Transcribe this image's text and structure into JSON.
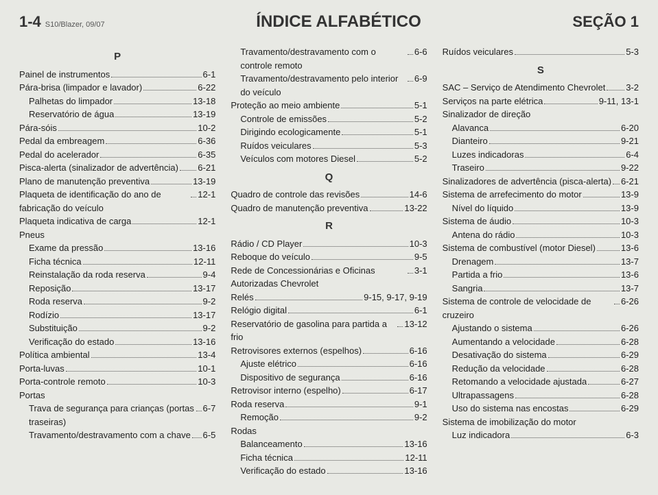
{
  "header": {
    "pageNum": "1-4",
    "docRef": "S10/Blazer, 09/07",
    "title": "ÍNDICE ALFABÉTICO",
    "section": "SEÇÃO 1"
  },
  "columns": [
    [
      {
        "type": "letter",
        "text": "P"
      },
      {
        "type": "entry",
        "label": "Painel de instrumentos",
        "page": "6-1"
      },
      {
        "type": "entry",
        "label": "Pára-brisa (limpador e lavador)",
        "page": "6-22"
      },
      {
        "type": "entry",
        "label": "Palhetas do limpador",
        "page": "13-18",
        "indent": 1
      },
      {
        "type": "entry",
        "label": "Reservatório de água",
        "page": "13-19",
        "indent": 1
      },
      {
        "type": "entry",
        "label": "Pára-sóis",
        "page": "10-2"
      },
      {
        "type": "entry",
        "label": "Pedal da embreagem",
        "page": "6-36"
      },
      {
        "type": "entry",
        "label": "Pedal do acelerador",
        "page": "6-35"
      },
      {
        "type": "entry",
        "label": "Pisca-alerta (sinalizador de advertência)",
        "page": "6-21"
      },
      {
        "type": "entry",
        "label": "Plano de manutenção preventiva",
        "page": "13-19"
      },
      {
        "type": "entry",
        "label": "Plaqueta de identificação do ano de fabricação do veículo",
        "page": "12-1"
      },
      {
        "type": "entry",
        "label": "Plaqueta indicativa de carga",
        "page": "12-1"
      },
      {
        "type": "entry",
        "label": "Pneus",
        "noref": true
      },
      {
        "type": "entry",
        "label": "Exame da pressão",
        "page": "13-16",
        "indent": 1
      },
      {
        "type": "entry",
        "label": "Ficha técnica",
        "page": "12-11",
        "indent": 1
      },
      {
        "type": "entry",
        "label": "Reinstalação da roda reserva",
        "page": "9-4",
        "indent": 1
      },
      {
        "type": "entry",
        "label": "Reposição",
        "page": "13-17",
        "indent": 1
      },
      {
        "type": "entry",
        "label": "Roda reserva",
        "page": "9-2",
        "indent": 1
      },
      {
        "type": "entry",
        "label": "Rodízio",
        "page": "13-17",
        "indent": 1
      },
      {
        "type": "entry",
        "label": "Substituição",
        "page": "9-2",
        "indent": 1
      },
      {
        "type": "entry",
        "label": "Verificação do estado",
        "page": "13-16",
        "indent": 1
      },
      {
        "type": "entry",
        "label": "Política ambiental",
        "page": "13-4"
      },
      {
        "type": "entry",
        "label": "Porta-luvas",
        "page": "10-1"
      },
      {
        "type": "entry",
        "label": "Porta-controle remoto",
        "page": "10-3"
      },
      {
        "type": "entry",
        "label": "Portas",
        "noref": true
      },
      {
        "type": "entry",
        "label": "Trava de segurança para crianças (portas traseiras)",
        "page": "6-7",
        "indent": 1
      },
      {
        "type": "entry",
        "label": "Travamento/destravamento com a chave",
        "page": "6-5",
        "indent": 1
      }
    ],
    [
      {
        "type": "entry",
        "label": "Travamento/destravamento com o controle remoto",
        "page": "6-6",
        "indent": 1
      },
      {
        "type": "entry",
        "label": "Travamento/destravamento pelo interior do veículo",
        "page": "6-9",
        "indent": 1
      },
      {
        "type": "entry",
        "label": "Proteção ao meio ambiente",
        "page": "5-1"
      },
      {
        "type": "entry",
        "label": "Controle de emissões",
        "page": "5-2",
        "indent": 1
      },
      {
        "type": "entry",
        "label": "Dirigindo ecologicamente",
        "page": "5-1",
        "indent": 1
      },
      {
        "type": "entry",
        "label": "Ruídos veiculares",
        "page": "5-3",
        "indent": 1
      },
      {
        "type": "entry",
        "label": "Veículos com motores Diesel",
        "page": "5-2",
        "indent": 1
      },
      {
        "type": "letter",
        "text": "Q"
      },
      {
        "type": "entry",
        "label": "Quadro de controle das revisões",
        "page": "14-6"
      },
      {
        "type": "entry",
        "label": "Quadro de manutenção preventiva",
        "page": "13-22"
      },
      {
        "type": "letter",
        "text": "R"
      },
      {
        "type": "entry",
        "label": "Rádio / CD Player",
        "page": "10-3"
      },
      {
        "type": "entry",
        "label": "Reboque do veículo",
        "page": "9-5"
      },
      {
        "type": "entry",
        "label": "Rede de Concessionárias e Oficinas Autorizadas Chevrolet",
        "page": "3-1"
      },
      {
        "type": "entry",
        "label": "Relés",
        "page": "9-15, 9-17, 9-19"
      },
      {
        "type": "entry",
        "label": "Relógio digital",
        "page": "6-1"
      },
      {
        "type": "entry",
        "label": "Reservatório de gasolina para partida a frio",
        "page": "13-12"
      },
      {
        "type": "entry",
        "label": "Retrovisores externos (espelhos)",
        "page": "6-16"
      },
      {
        "type": "entry",
        "label": "Ajuste elétrico",
        "page": "6-16",
        "indent": 1
      },
      {
        "type": "entry",
        "label": "Dispositivo de segurança",
        "page": "6-16",
        "indent": 1
      },
      {
        "type": "entry",
        "label": "Retrovisor interno (espelho)",
        "page": "6-17"
      },
      {
        "type": "entry",
        "label": "Roda reserva",
        "page": "9-1"
      },
      {
        "type": "entry",
        "label": "Remoção",
        "page": "9-2",
        "indent": 1
      },
      {
        "type": "entry",
        "label": "Rodas",
        "noref": true
      },
      {
        "type": "entry",
        "label": "Balanceamento",
        "page": "13-16",
        "indent": 1
      },
      {
        "type": "entry",
        "label": "Ficha técnica",
        "page": "12-11",
        "indent": 1
      },
      {
        "type": "entry",
        "label": "Verificação do estado",
        "page": "13-16",
        "indent": 1
      }
    ],
    [
      {
        "type": "entry",
        "label": "Ruídos veiculares",
        "page": "5-3"
      },
      {
        "type": "letter",
        "text": "S"
      },
      {
        "type": "entry",
        "label": "SAC – Serviço de Atendimento Chevrolet",
        "page": "3-2"
      },
      {
        "type": "entry",
        "label": "Serviços na parte elétrica",
        "page": "9-11, 13-1"
      },
      {
        "type": "entry",
        "label": "Sinalizador de direção",
        "noref": true
      },
      {
        "type": "entry",
        "label": "Alavanca",
        "page": "6-20",
        "indent": 1
      },
      {
        "type": "entry",
        "label": "Dianteiro",
        "page": "9-21",
        "indent": 1
      },
      {
        "type": "entry",
        "label": "Luzes indicadoras",
        "page": "6-4",
        "indent": 1
      },
      {
        "type": "entry",
        "label": "Traseiro",
        "page": "9-22",
        "indent": 1
      },
      {
        "type": "entry",
        "label": "Sinalizadores de advertência (pisca-alerta)",
        "page": "6-21"
      },
      {
        "type": "entry",
        "label": "Sistema de arrefecimento do motor",
        "page": "13-9"
      },
      {
        "type": "entry",
        "label": "Nível do líquido",
        "page": "13-9",
        "indent": 1
      },
      {
        "type": "entry",
        "label": "Sistema de áudio",
        "page": "10-3"
      },
      {
        "type": "entry",
        "label": "Antena do rádio",
        "page": "10-3",
        "indent": 1
      },
      {
        "type": "entry",
        "label": "Sistema de combustível (motor Diesel)",
        "page": "13-6"
      },
      {
        "type": "entry",
        "label": "Drenagem",
        "page": "13-7",
        "indent": 1
      },
      {
        "type": "entry",
        "label": "Partida a frio",
        "page": "13-6",
        "indent": 1
      },
      {
        "type": "entry",
        "label": "Sangria",
        "page": "13-7",
        "indent": 1
      },
      {
        "type": "entry",
        "label": "Sistema de controle de velocidade de cruzeiro",
        "page": "6-26"
      },
      {
        "type": "entry",
        "label": "Ajustando o sistema",
        "page": "6-26",
        "indent": 1
      },
      {
        "type": "entry",
        "label": "Aumentando a velocidade",
        "page": "6-28",
        "indent": 1
      },
      {
        "type": "entry",
        "label": "Desativação do sistema",
        "page": "6-29",
        "indent": 1
      },
      {
        "type": "entry",
        "label": "Redução da velocidade",
        "page": "6-28",
        "indent": 1
      },
      {
        "type": "entry",
        "label": "Retomando a velocidade ajustada",
        "page": "6-27",
        "indent": 1
      },
      {
        "type": "entry",
        "label": "Ultrapassagens",
        "page": "6-28",
        "indent": 1
      },
      {
        "type": "entry",
        "label": "Uso do sistema nas encostas",
        "page": "6-29",
        "indent": 1
      },
      {
        "type": "entry",
        "label": "Sistema de imobilização do motor",
        "noref": true
      },
      {
        "type": "entry",
        "label": "Luz indicadora",
        "page": "6-3",
        "indent": 1
      }
    ]
  ]
}
